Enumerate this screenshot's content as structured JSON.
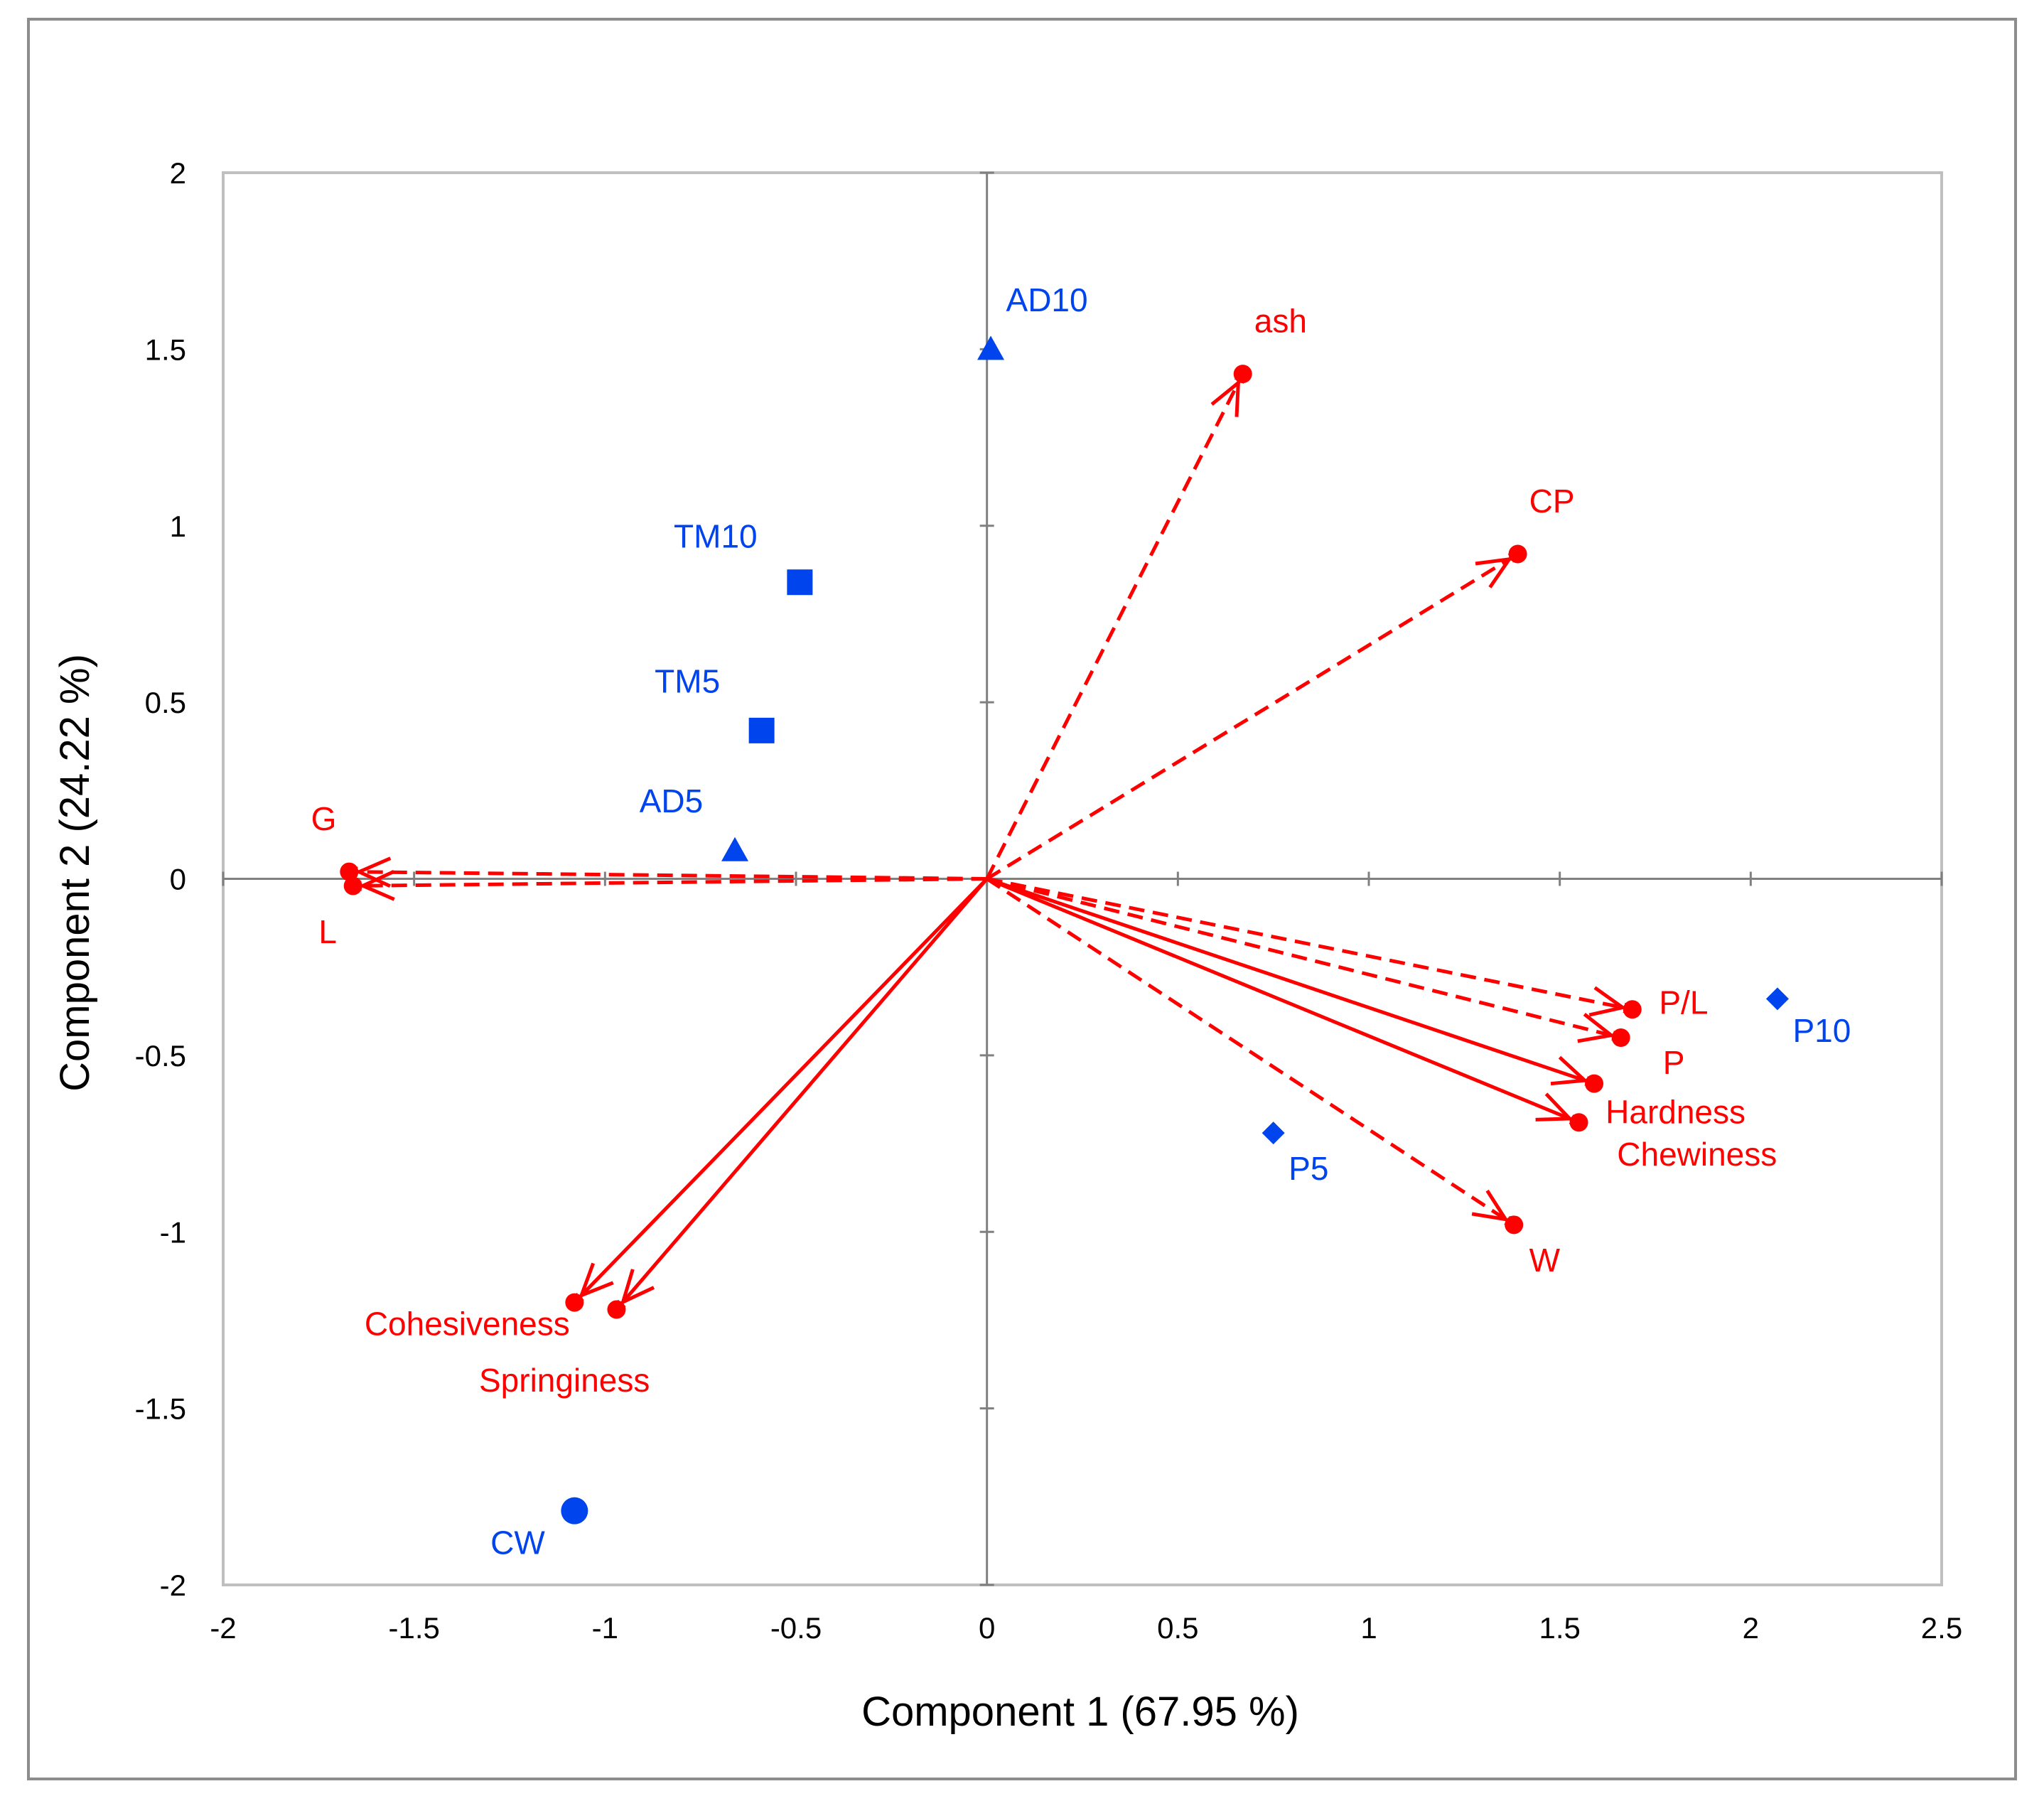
{
  "colors": {
    "variable": "#ff0000",
    "observation": "#0044ee",
    "axis": "#808080",
    "frame": "#bfbfbf"
  },
  "chart_data": {
    "type": "scatter",
    "xlabel": "Component 1 (67.95 %)",
    "ylabel": "Component 2 (24.22 %)",
    "xlim": [
      -2,
      2.5
    ],
    "ylim": [
      -2,
      2
    ],
    "x_ticks": [
      "-2",
      "-1.5",
      "-1",
      "-0.5",
      "0",
      "0.5",
      "1",
      "1.5",
      "2",
      "2.5"
    ],
    "y_ticks": [
      "-2",
      "-1.5",
      "-1",
      "-0.5",
      "0",
      "0.5",
      "1",
      "1.5",
      "2"
    ],
    "x_tick_values": [
      -2,
      -1.5,
      -1,
      -0.5,
      0,
      0.5,
      1,
      1.5,
      2,
      2.5
    ],
    "y_tick_values": [
      -2,
      -1.5,
      -1,
      -0.5,
      0,
      0.5,
      1,
      1.5,
      2
    ],
    "grid": false,
    "variables": [
      {
        "name": "ash",
        "x": 0.67,
        "y": 1.43,
        "style": "dashed",
        "label_dx": 0.03,
        "label_dy": 0.15
      },
      {
        "name": "CP",
        "x": 1.39,
        "y": 0.92,
        "style": "dashed",
        "label_dx": 0.03,
        "label_dy": 0.15
      },
      {
        "name": "G",
        "x": -1.67,
        "y": 0.02,
        "style": "dashed",
        "label_dx": -0.1,
        "label_dy": 0.15
      },
      {
        "name": "L",
        "x": -1.66,
        "y": -0.02,
        "style": "dashed",
        "label_dx": -0.09,
        "label_dy": -0.13
      },
      {
        "name": "P/L",
        "x": 1.69,
        "y": -0.37,
        "style": "dashed",
        "label_dx": 0.07,
        "label_dy": 0.02
      },
      {
        "name": "P",
        "x": 1.66,
        "y": -0.45,
        "style": "dashed",
        "label_dx": 0.11,
        "label_dy": -0.07
      },
      {
        "name": "Hardness",
        "x": 1.59,
        "y": -0.58,
        "style": "solid",
        "label_dx": 0.03,
        "label_dy": -0.08
      },
      {
        "name": "Chewiness",
        "x": 1.55,
        "y": -0.69,
        "style": "solid",
        "label_dx": 0.1,
        "label_dy": -0.09
      },
      {
        "name": "W",
        "x": 1.38,
        "y": -0.98,
        "style": "dashed",
        "label_dx": 0.04,
        "label_dy": -0.1
      },
      {
        "name": "Cohesiveness",
        "x": -1.08,
        "y": -1.2,
        "style": "solid",
        "label_dx": -0.55,
        "label_dy": -0.06
      },
      {
        "name": "Springiness",
        "x": -0.97,
        "y": -1.22,
        "style": "solid",
        "label_dx": -0.36,
        "label_dy": -0.2
      }
    ],
    "observations": [
      {
        "name": "AD10",
        "x": 0.01,
        "y": 1.5,
        "marker": "triangle",
        "label_dx": 0.04,
        "label_dy": 0.14
      },
      {
        "name": "TM10",
        "x": -0.49,
        "y": 0.84,
        "marker": "square",
        "label_dx": -0.33,
        "label_dy": 0.13
      },
      {
        "name": "TM5",
        "x": -0.59,
        "y": 0.42,
        "marker": "square",
        "label_dx": -0.28,
        "label_dy": 0.14
      },
      {
        "name": "AD5",
        "x": -0.66,
        "y": 0.08,
        "marker": "triangle",
        "label_dx": -0.25,
        "label_dy": 0.14
      },
      {
        "name": "P10",
        "x": 2.07,
        "y": -0.34,
        "marker": "diamond",
        "label_dx": 0.04,
        "label_dy": -0.09
      },
      {
        "name": "P5",
        "x": 0.75,
        "y": -0.72,
        "marker": "diamond",
        "label_dx": 0.04,
        "label_dy": -0.1
      },
      {
        "name": "CW",
        "x": -1.08,
        "y": -1.79,
        "marker": "circle",
        "label_dx": -0.22,
        "label_dy": -0.09
      }
    ]
  }
}
